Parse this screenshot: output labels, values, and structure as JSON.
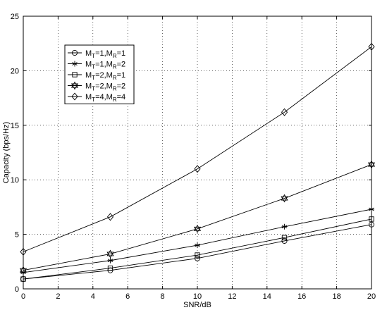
{
  "chart_data": {
    "type": "line",
    "xlabel": "SNR/dB",
    "ylabel": "Capacity (bps/Hz)",
    "xlim": [
      0,
      20
    ],
    "ylim": [
      0,
      25
    ],
    "xticks": [
      0,
      2,
      4,
      6,
      8,
      10,
      12,
      14,
      16,
      18,
      20
    ],
    "yticks": [
      0,
      5,
      10,
      15,
      20,
      25
    ],
    "grid": true,
    "legend_position": "top-left",
    "series": [
      {
        "name": "M_T=1,M_R=1",
        "label_parts": [
          "M",
          "T",
          "=1,M",
          "R",
          "=1"
        ],
        "marker": "circle",
        "x": [
          0,
          5,
          10,
          15,
          20
        ],
        "y": [
          0.9,
          1.7,
          2.8,
          4.4,
          5.9
        ]
      },
      {
        "name": "M_T=1,M_R=2",
        "label_parts": [
          "M",
          "T",
          "=1,M",
          "R",
          "=2"
        ],
        "marker": "asterisk",
        "x": [
          0,
          5,
          10,
          15,
          20
        ],
        "y": [
          1.5,
          2.6,
          4.0,
          5.7,
          7.3
        ]
      },
      {
        "name": "M_T=2,M_R=1",
        "label_parts": [
          "M",
          "T",
          "=2,M",
          "R",
          "=1"
        ],
        "marker": "square",
        "x": [
          0,
          5,
          10,
          15,
          20
        ],
        "y": [
          0.9,
          1.9,
          3.1,
          4.7,
          6.4
        ]
      },
      {
        "name": "M_T=2,M_R=2",
        "label_parts": [
          "M",
          "T",
          "=2,M",
          "R",
          "=2"
        ],
        "marker": "hexagram",
        "x": [
          0,
          5,
          10,
          15,
          20
        ],
        "y": [
          1.7,
          3.2,
          5.5,
          8.3,
          11.4
        ]
      },
      {
        "name": "M_T=4,M_R=4",
        "label_parts": [
          "M",
          "T",
          "=4,M",
          "R",
          "=4"
        ],
        "marker": "diamond",
        "x": [
          0,
          5,
          10,
          15,
          20
        ],
        "y": [
          3.4,
          6.6,
          11.0,
          16.2,
          22.2
        ]
      }
    ]
  }
}
